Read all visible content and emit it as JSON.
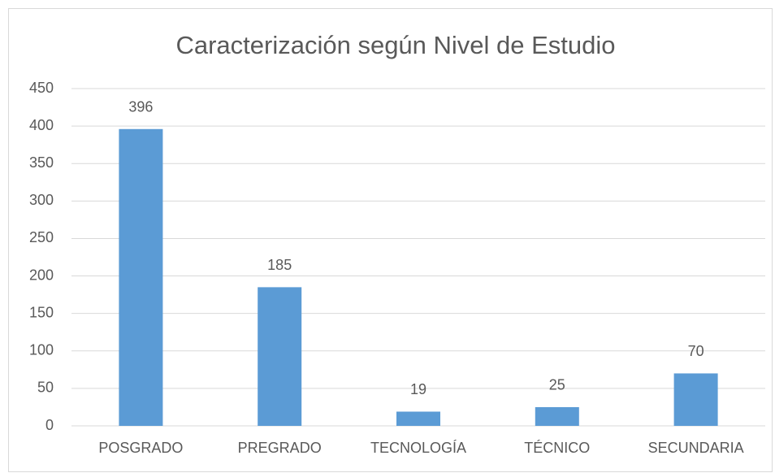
{
  "chart_data": {
    "type": "bar",
    "title": "Caracterización según Nivel de Estudio",
    "categories": [
      "POSGRADO",
      "PREGRADO",
      "TECNOLOGÍA",
      "TÉCNICO",
      "SECUNDARIA"
    ],
    "values": [
      396,
      185,
      19,
      25,
      70
    ],
    "color": "#5b9bd5",
    "ylim": [
      0,
      450
    ],
    "yticks": [
      0,
      50,
      100,
      150,
      200,
      250,
      300,
      350,
      400,
      450
    ],
    "grid": true
  }
}
